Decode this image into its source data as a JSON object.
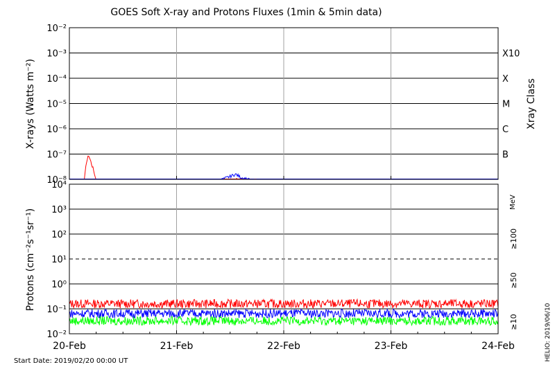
{
  "title": "GOES Soft X-ray and Protons Fluxes   (1min & 5min data)",
  "start_date": "Start Date: 2019/02/20 00:00 UT",
  "credit": "HELIO: 2019/06/10",
  "colors": {
    "red": "#ff0000",
    "blue": "#0000ff",
    "green": "#00ff00",
    "gridline": "#a0a0a0"
  },
  "chart_data": [
    {
      "type": "line",
      "ylabel": "X-rays (Watts m⁻²)",
      "ylabel_right": "Xray Class",
      "yscale": "log",
      "ylim": [
        1e-08,
        0.01
      ],
      "ytick_labels": [
        "10⁻⁸",
        "10⁻⁷",
        "10⁻⁶",
        "10⁻⁵",
        "10⁻⁴",
        "10⁻³",
        "10⁻²"
      ],
      "class_labels": [
        {
          "label": "B",
          "value": 1e-07
        },
        {
          "label": "C",
          "value": 1e-06
        },
        {
          "label": "M",
          "value": 1e-05
        },
        {
          "label": "X",
          "value": 0.0001
        },
        {
          "label": "X10",
          "value": 0.001
        }
      ],
      "x_days": [
        "20-Feb",
        "21-Feb",
        "22-Feb",
        "23-Feb",
        "24-Feb"
      ],
      "xlim_days": [
        0,
        4
      ],
      "series": [
        {
          "color": "red",
          "points": [
            [
              0,
              7e-09
            ],
            [
              0.1,
              7e-09
            ],
            [
              0.14,
              1e-08
            ],
            [
              0.16,
              5e-08
            ],
            [
              0.18,
              9e-08
            ],
            [
              0.2,
              5e-08
            ],
            [
              0.23,
              2e-08
            ],
            [
              0.25,
              8e-09
            ],
            [
              0.3,
              7e-09
            ],
            [
              0.5,
              7e-09
            ],
            [
              1.0,
              7e-09
            ],
            [
              1.5,
              7e-09
            ],
            [
              1.55,
              1e-08
            ],
            [
              1.6,
              9e-09
            ],
            [
              2.0,
              7e-09
            ],
            [
              3.0,
              7e-09
            ],
            [
              4.0,
              7e-09
            ]
          ]
        },
        {
          "color": "blue",
          "points": [
            [
              0,
              7e-09
            ],
            [
              0.5,
              8e-09
            ],
            [
              1.0,
              8e-09
            ],
            [
              1.4,
              9e-09
            ],
            [
              1.5,
              1.3e-08
            ],
            [
              1.55,
              1.6e-08
            ],
            [
              1.6,
              1.2e-08
            ],
            [
              1.7,
              9e-09
            ],
            [
              2.0,
              8e-09
            ],
            [
              2.5,
              8e-09
            ],
            [
              3.0,
              8e-09
            ],
            [
              3.5,
              8e-09
            ],
            [
              4.0,
              8e-09
            ]
          ]
        }
      ]
    },
    {
      "type": "line",
      "ylabel": "Protons (cm⁻²s⁻¹sr⁻¹)",
      "yscale": "log",
      "ylim": [
        0.01,
        10000
      ],
      "ytick_labels": [
        "10⁻²",
        "10⁻¹",
        "10⁰",
        "10¹",
        "10²",
        "10³",
        "10⁴"
      ],
      "dashed_line_value": 10,
      "unit_label": "MeV",
      "x_days": [
        "20-Feb",
        "21-Feb",
        "22-Feb",
        "23-Feb",
        "24-Feb"
      ],
      "xlim_days": [
        0,
        4
      ],
      "series": [
        {
          "name": "≥10",
          "color": "red",
          "typical": 0.16
        },
        {
          "name": "≥50",
          "color": "blue",
          "typical": 0.065
        },
        {
          "name": "≥100",
          "color": "green",
          "typical": 0.033
        }
      ]
    }
  ]
}
